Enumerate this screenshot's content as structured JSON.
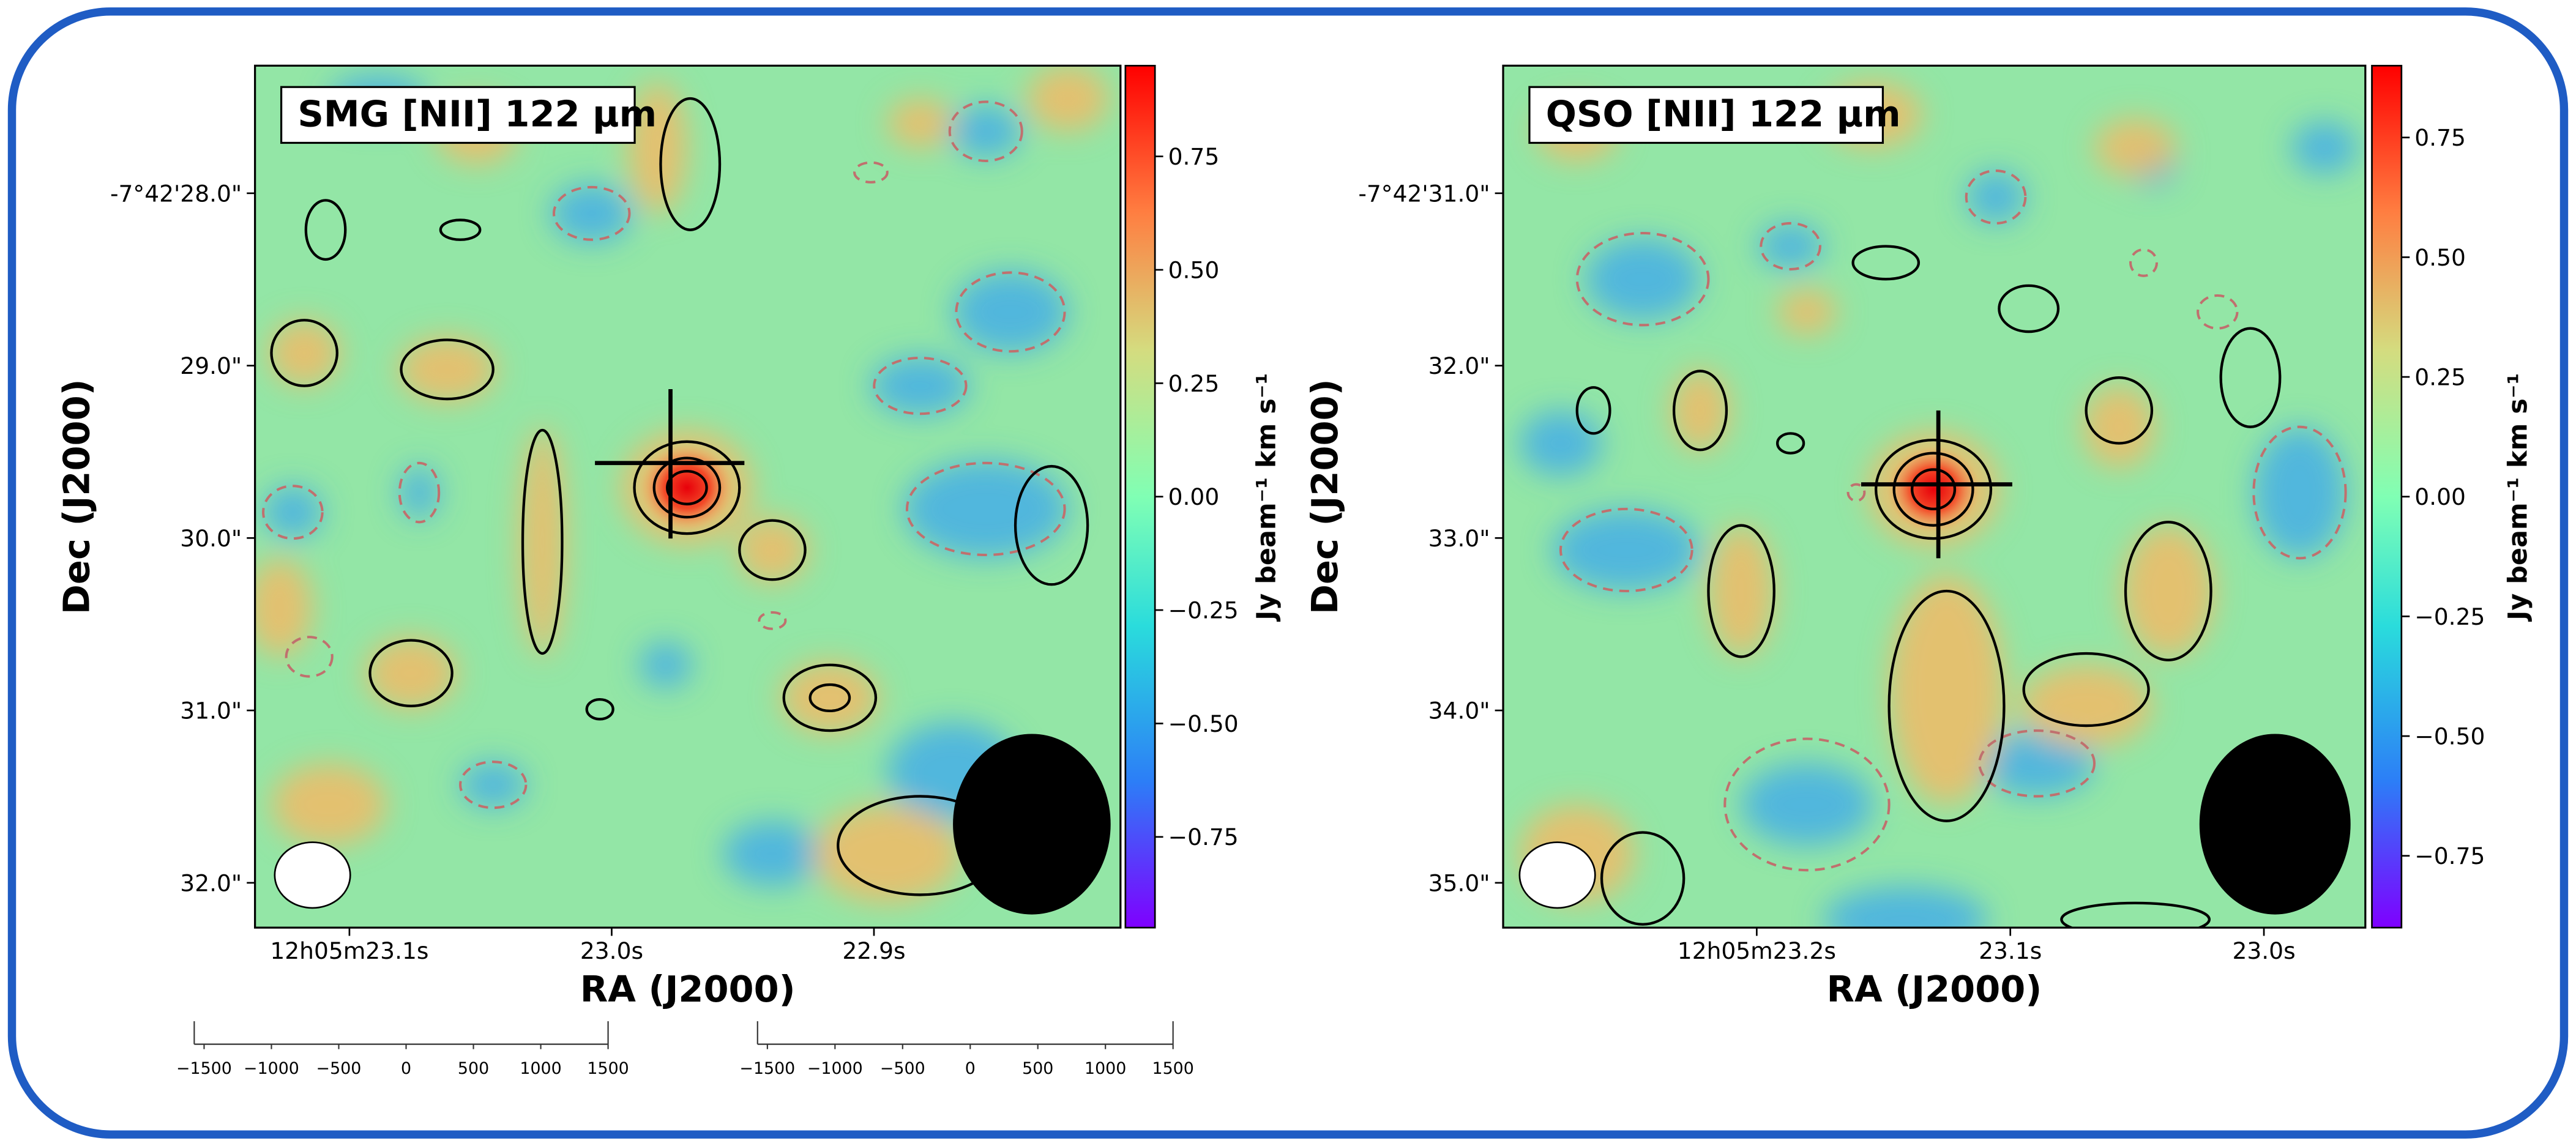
{
  "chart_data": [
    {
      "type": "contour",
      "title": "SMG [NII] 122 μm",
      "xlabel": "RA (J2000)",
      "ylabel": "Dec (J2000)",
      "colorbar_label": "Jy beam⁻¹ km s⁻¹",
      "xlim": [
        23.136,
        22.806
      ],
      "xticks": [
        {
          "value": 23.1,
          "label": "12h05m23.1s"
        },
        {
          "value": 23.0,
          "label": "23.0s"
        },
        {
          "value": 22.9,
          "label": "22.9s"
        }
      ],
      "ylim": [
        32.26,
        27.26
      ],
      "yticks": [
        {
          "value": 28.0,
          "label": "-7°42'28.0\""
        },
        {
          "value": 29.0,
          "label": "29.0\""
        },
        {
          "value": 30.0,
          "label": "30.0\""
        },
        {
          "value": 31.0,
          "label": "31.0\""
        },
        {
          "value": 32.0,
          "label": "32.0\""
        }
      ],
      "clim": [
        -0.95,
        0.95
      ],
      "cticks": [
        0.75,
        {
          "value": 0.5,
          "label": "0.50"
        },
        0.25,
        {
          "value": 0,
          "label": "0.00"
        },
        {
          "value": -0.25,
          "label": "−0.25"
        },
        {
          "value": -0.5,
          "label": "−0.50"
        },
        {
          "value": -0.75,
          "label": "−0.75"
        }
      ]
    },
    {
      "type": "contour",
      "title": "QSO [NII] 122 μm",
      "xlabel": "RA (J2000)",
      "ylabel": "Dec (J2000)",
      "colorbar_label": "Jy beam⁻¹ km s⁻¹",
      "xlim": [
        23.3,
        22.96
      ],
      "xticks": [
        {
          "value": 23.2,
          "label": "12h05m23.2s"
        },
        {
          "value": 23.1,
          "label": "23.1s"
        },
        {
          "value": 23.0,
          "label": "23.0s"
        }
      ],
      "ylim": [
        35.26,
        30.26
      ],
      "yticks": [
        {
          "value": 31.0,
          "label": "-7°42'31.0\""
        },
        {
          "value": 32.0,
          "label": "32.0\""
        },
        {
          "value": 33.0,
          "label": "33.0\""
        },
        {
          "value": 34.0,
          "label": "34.0\""
        },
        {
          "value": 35.0,
          "label": "35.0\""
        }
      ],
      "clim": [
        -0.9,
        0.9
      ],
      "cticks": [
        0.75,
        {
          "value": 0.5,
          "label": "0.50"
        },
        0.25,
        {
          "value": 0,
          "label": "0.00"
        },
        {
          "value": -0.25,
          "label": "−0.25"
        },
        {
          "value": -0.5,
          "label": "−0.50"
        },
        {
          "value": -0.75,
          "label": "−0.75"
        }
      ]
    },
    {
      "type": "axis",
      "xlim": [
        -1500,
        1500
      ],
      "xticks": [
        {
          "value": -1500,
          "label": "−1500"
        },
        {
          "value": -1000,
          "label": "−1000"
        },
        {
          "value": -500,
          "label": "−500"
        },
        0,
        500,
        1000,
        1500
      ]
    },
    {
      "type": "axis",
      "xlim": [
        -1500,
        1500
      ],
      "xticks": [
        {
          "value": -1500,
          "label": "−1500"
        },
        {
          "value": -1000,
          "label": "−1000"
        },
        {
          "value": -500,
          "label": "−500"
        },
        0,
        500,
        1000,
        1500
      ]
    }
  ]
}
